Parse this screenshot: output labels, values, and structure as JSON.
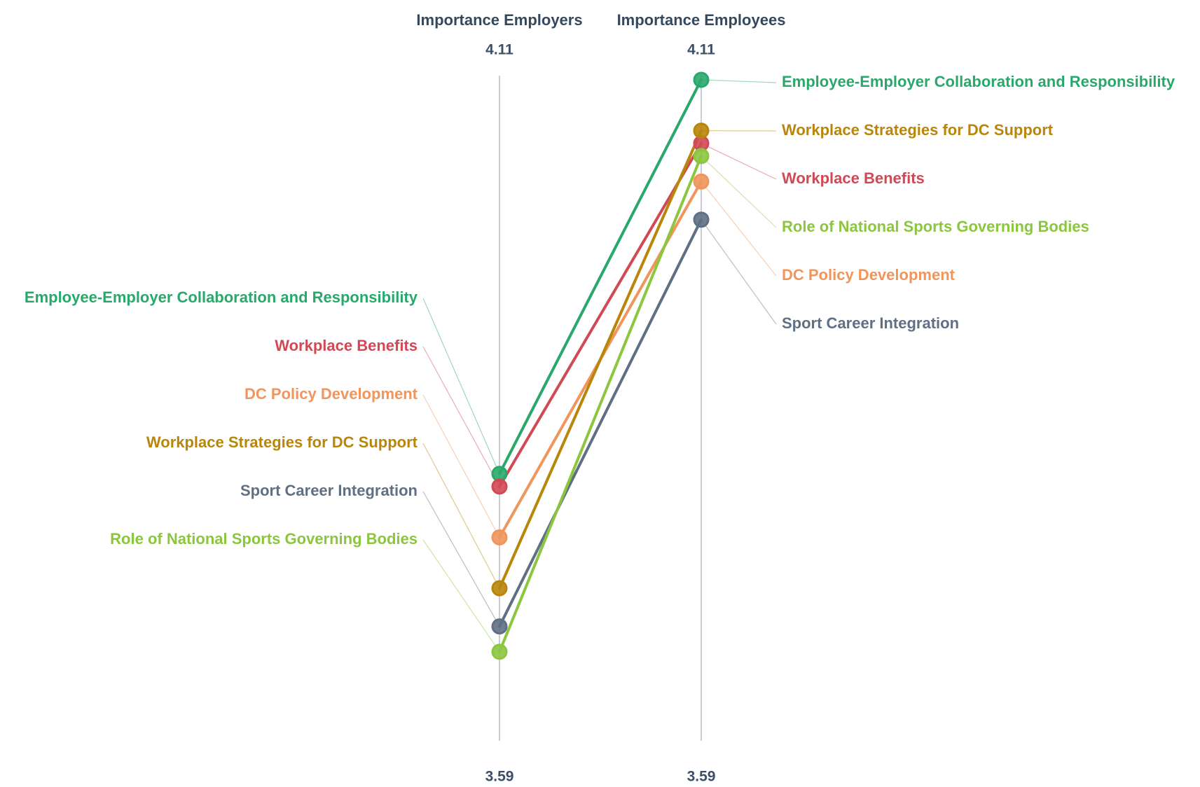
{
  "chart_data": {
    "type": "line",
    "axes": [
      {
        "title": "Importance Employers",
        "top_label": "4.11",
        "bottom_label": "3.59"
      },
      {
        "title": "Importance Employees",
        "top_label": "4.11",
        "bottom_label": "3.59"
      }
    ],
    "ylim": [
      3.59,
      4.11
    ],
    "series": [
      {
        "name": "Employee-Employer Collaboration and Responsibility",
        "color": "#2aa86b",
        "values": [
          3.8,
          4.11
        ]
      },
      {
        "name": "Workplace Benefits",
        "color": "#d04955",
        "values": [
          3.79,
          4.06
        ]
      },
      {
        "name": "DC Policy Development",
        "color": "#f0955b",
        "values": [
          3.75,
          4.03
        ]
      },
      {
        "name": "Workplace Strategies for DC Support",
        "color": "#b8860b",
        "values": [
          3.71,
          4.07
        ]
      },
      {
        "name": "Sport Career Integration",
        "color": "#5f7084",
        "values": [
          3.68,
          4.0
        ]
      },
      {
        "name": "Role of National Sports Governing Bodies",
        "color": "#8cc63f",
        "values": [
          3.66,
          4.05
        ]
      }
    ],
    "left_label_order": [
      "Employee-Employer Collaboration and Responsibility",
      "Workplace Benefits",
      "DC Policy Development",
      "Workplace Strategies for DC Support",
      "Sport Career Integration",
      "Role of National Sports Governing Bodies"
    ],
    "right_label_order": [
      "Employee-Employer Collaboration and Responsibility",
      "Workplace Strategies for DC Support",
      "Workplace Benefits",
      "Role of National Sports Governing Bodies",
      "DC Policy Development",
      "Sport Career Integration"
    ]
  }
}
